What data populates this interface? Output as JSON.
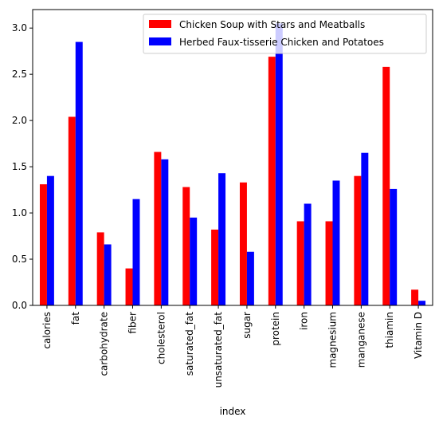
{
  "chart_data": {
    "type": "bar",
    "title": "",
    "xlabel": "index",
    "ylabel": "",
    "ylim": [
      0,
      3.2
    ],
    "yticks": [
      "0.0",
      "0.5",
      "1.0",
      "1.5",
      "2.0",
      "2.5",
      "3.0"
    ],
    "grid": false,
    "legend_position": "top-right",
    "categories": [
      "calories",
      "fat",
      "carbohydrate",
      "fiber",
      "cholesterol",
      "saturated_fat",
      "unsaturated_fat",
      "sugar",
      "protein",
      "iron",
      "magnesium",
      "manganese",
      "thiamin",
      "Vitamin D"
    ],
    "series": [
      {
        "name": "Chicken Soup with Stars and Meatballs",
        "color": "#ff0000",
        "values": [
          1.31,
          2.04,
          0.79,
          0.4,
          1.66,
          1.28,
          0.82,
          1.33,
          2.69,
          0.91,
          0.91,
          1.4,
          2.58,
          0.17
        ]
      },
      {
        "name": "Herbed Faux-tisserie Chicken and Potatoes",
        "color": "#0000ff",
        "values": [
          1.4,
          2.85,
          0.66,
          1.15,
          1.58,
          0.95,
          1.43,
          0.58,
          3.05,
          1.1,
          1.35,
          1.65,
          1.26,
          0.05
        ]
      }
    ]
  }
}
